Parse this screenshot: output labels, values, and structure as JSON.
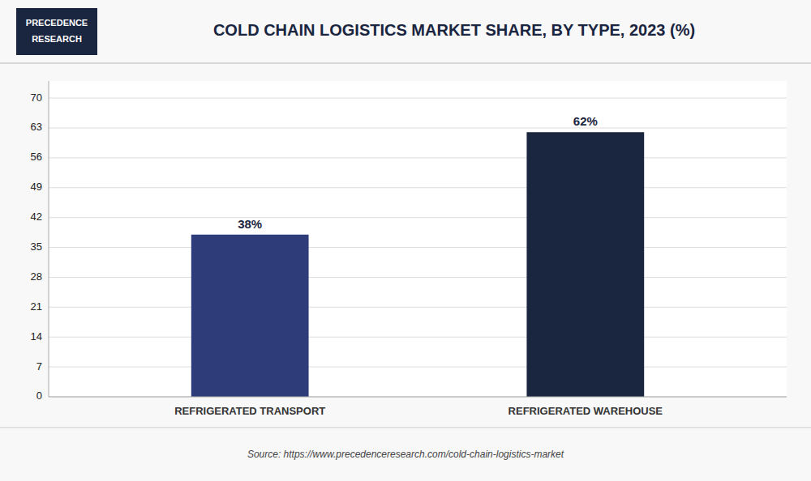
{
  "chart_data": {
    "type": "bar",
    "title": "COLD CHAIN LOGISTICS MARKET SHARE, BY TYPE, 2023 (%)",
    "categories": [
      "REFRIGERATED TRANSPORT",
      "REFRIGERATED WAREHOUSE"
    ],
    "values": [
      38,
      62
    ],
    "value_labels": [
      "38%",
      "62%"
    ],
    "data_labels": true,
    "colors": [
      "#2e3d7a",
      "#1a2540"
    ],
    "ylim": [
      0,
      74
    ],
    "yticks": [
      0,
      7,
      14,
      21,
      28,
      35,
      42,
      49,
      56,
      63,
      70
    ],
    "grid": true,
    "source": "Source: https://www.precedenceresearch.com/cold-chain-logistics-market",
    "annotations": [
      "PRECEDENCE",
      "RESEARCH"
    ]
  }
}
